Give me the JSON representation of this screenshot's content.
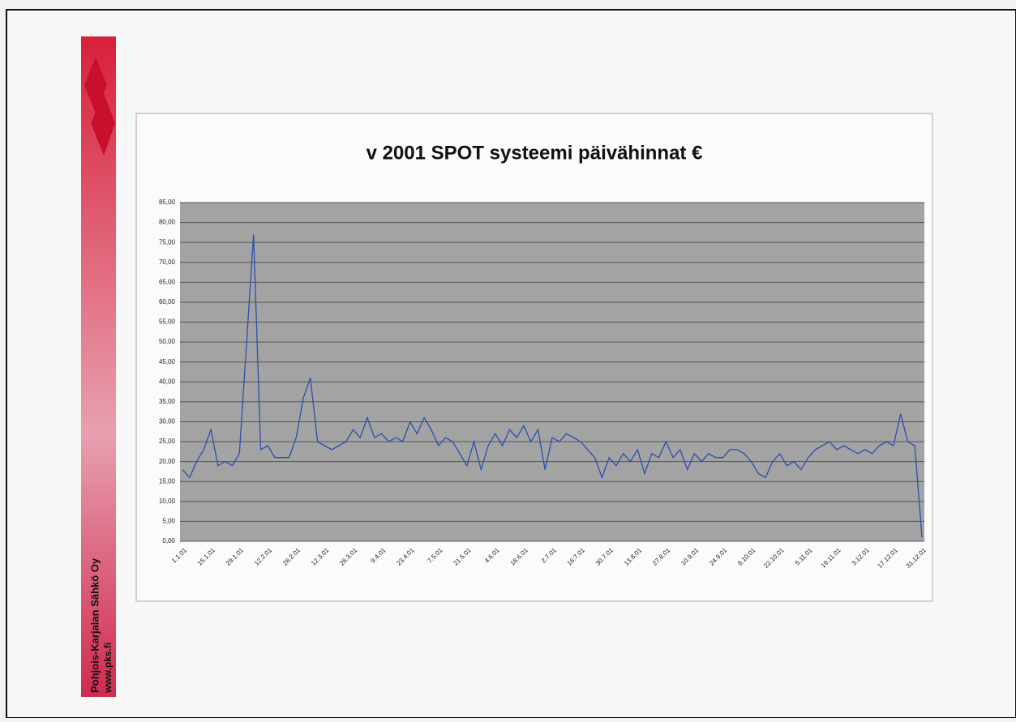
{
  "company": "Pohjois-Karjalan Sähkö Oy",
  "website": "www.pks.fi",
  "chart_data": {
    "type": "line",
    "title": "v 2001 SPOT systeemi päivähinnat €",
    "categories": [
      "1.1.01",
      null,
      null,
      null,
      "15.1.01",
      null,
      null,
      null,
      "29.1.01",
      null,
      null,
      null,
      "12.2.01",
      null,
      null,
      null,
      "26.2.01",
      null,
      null,
      null,
      "12.3.01",
      null,
      null,
      null,
      "26.3.01",
      null,
      null,
      null,
      "9.4.01",
      null,
      null,
      null,
      "23.4.01",
      null,
      null,
      null,
      "7.5.01",
      null,
      null,
      null,
      "21.5.01",
      null,
      null,
      null,
      "4.6.01",
      null,
      null,
      null,
      "18.6.01",
      null,
      null,
      null,
      "2.7.01",
      null,
      null,
      null,
      "16.7.01",
      null,
      null,
      null,
      "30.7.01",
      null,
      null,
      null,
      "13.8.01",
      null,
      null,
      null,
      "27.8.01",
      null,
      null,
      null,
      "10.9.01",
      null,
      null,
      null,
      "24.9.01",
      null,
      null,
      null,
      "8.10.01",
      null,
      null,
      null,
      "22.10.01",
      null,
      null,
      null,
      "5.11.01",
      null,
      null,
      null,
      "19.11.01",
      null,
      null,
      null,
      "3.12.01",
      null,
      null,
      null,
      "17.12.01",
      null,
      null,
      null,
      "31.12.01"
    ],
    "series": [
      {
        "name": "SPOT",
        "color": "#2a4fb0",
        "values": [
          18,
          16,
          20,
          23,
          28,
          19,
          20,
          19,
          22,
          49,
          77,
          23,
          24,
          21,
          21,
          21,
          26,
          36,
          41,
          25,
          24,
          23,
          24,
          25,
          28,
          26,
          31,
          26,
          27,
          25,
          26,
          25,
          30,
          27,
          31,
          28,
          24,
          26,
          25,
          22,
          19,
          25,
          18,
          24,
          27,
          24,
          28,
          26,
          29,
          25,
          28,
          18,
          26,
          25,
          27,
          26,
          25,
          23,
          21,
          16,
          21,
          19,
          22,
          20,
          23,
          17,
          22,
          21,
          25,
          21,
          23,
          18,
          22,
          20,
          22,
          21,
          21,
          23,
          23,
          22,
          20,
          17,
          16,
          20,
          22,
          19,
          20,
          18,
          21,
          23,
          24,
          25,
          23,
          24,
          23,
          22,
          23,
          22,
          24,
          25,
          24,
          32,
          25,
          24,
          1
        ]
      }
    ],
    "ylim": [
      0,
      85
    ],
    "yticks": [
      {
        "value": 0,
        "label": "0,00"
      },
      {
        "value": 5,
        "label": "5,00"
      },
      {
        "value": 10,
        "label": "10,00"
      },
      {
        "value": 15,
        "label": "15,00"
      },
      {
        "value": 20,
        "label": "20,00"
      },
      {
        "value": 25,
        "label": "25,00"
      },
      {
        "value": 30,
        "label": "30,00"
      },
      {
        "value": 35,
        "label": "35,00"
      },
      {
        "value": 40,
        "label": "40,00"
      },
      {
        "value": 45,
        "label": "45,00"
      },
      {
        "value": 50,
        "label": "50,00"
      },
      {
        "value": 55,
        "label": "55,00"
      },
      {
        "value": 60,
        "label": "60,00"
      },
      {
        "value": 65,
        "label": "65,00"
      },
      {
        "value": 70,
        "label": "70,00"
      },
      {
        "value": 75,
        "label": "75,00"
      },
      {
        "value": 80,
        "label": "80,00"
      },
      {
        "value": 85,
        "label": "85,00"
      }
    ],
    "grid": true
  }
}
